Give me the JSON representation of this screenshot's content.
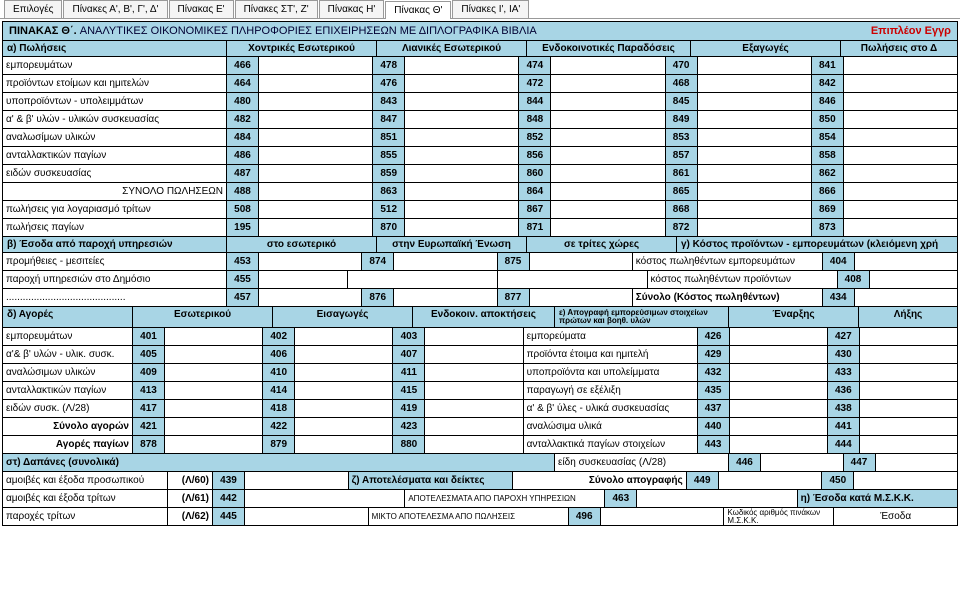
{
  "tabs": [
    "Επιλογές",
    "Πίνακες Α', Β', Γ', Δ'",
    "Πίνακας Ε'",
    "Πίνακες ΣΤ', Ζ'",
    "Πίνακας Η'",
    "Πίνακας Θ'",
    "Πίνακες Ι', ΙΑ'"
  ],
  "active_tab": 5,
  "title": {
    "pre": "ΠΙΝΑΚΑΣ Θ΄.",
    "main": "ΑΝΑΛΥΤΙΚΕΣ ΟΙΚΟΝΟΜΙΚΕΣ ΠΛΗΡΟΦΟΡΙΕΣ ΕΠΙΧΕΙΡΗΣΕΩΝ ΜΕ ΔΙΠΛΟΓΡΑΦΙΚΑ  ΒΙΒΛΙΑ",
    "extra": "Επιπλέον Εγγρ"
  },
  "sectionA": {
    "header": "α) Πωλήσεις",
    "cols": [
      "Χοντρικές Εσωτερικού",
      "Λιανικές Εσωτερικού",
      "Ενδοκοινοτικές Παραδόσεις",
      "Εξαγωγές",
      "Πωλήσεις στο Δ"
    ],
    "rows": [
      {
        "label": "εμπορευμάτων",
        "c": [
          "466",
          "478",
          "474",
          "470",
          "841"
        ]
      },
      {
        "label": "προϊόντων ετοίμων και ημιτελών",
        "c": [
          "464",
          "476",
          "472",
          "468",
          "842"
        ]
      },
      {
        "label": "υποπροϊόντων - υπολειμμάτων",
        "c": [
          "480",
          "843",
          "844",
          "845",
          "846"
        ]
      },
      {
        "label": "α' & β' υλών - υλικών συσκευασίας",
        "c": [
          "482",
          "847",
          "848",
          "849",
          "850"
        ]
      },
      {
        "label": "αναλωσίμων υλικών",
        "c": [
          "484",
          "851",
          "852",
          "853",
          "854"
        ]
      },
      {
        "label": "ανταλλακτικών παγίων",
        "c": [
          "486",
          "855",
          "856",
          "857",
          "858"
        ]
      },
      {
        "label": "ειδών συσκευασίας",
        "c": [
          "487",
          "859",
          "860",
          "861",
          "862"
        ]
      },
      {
        "label": "ΣΥΝΟΛΟ ΠΩΛΗΣΕΩΝ",
        "right": true,
        "c": [
          "488",
          "863",
          "864",
          "865",
          "866"
        ]
      },
      {
        "label": "πωλήσεις για λογαριασμό τρίτων",
        "c": [
          "508",
          "512",
          "867",
          "868",
          "869"
        ]
      },
      {
        "label": "πωλήσεις παγίων",
        "c": [
          "195",
          "870",
          "871",
          "872",
          "873"
        ]
      }
    ]
  },
  "sectionB": {
    "header": "β) Έσοδα από παροχή υπηρεσιών",
    "cols": [
      "στο εσωτερικό",
      "στην Ευρωπαϊκή Ένωση",
      "σε τρίτες χώρες",
      "γ) Κόστος προϊόντων - εμπορευμάτων (κλειόμενη χρή"
    ],
    "rows": [
      {
        "label": "προμήθειες - μεσιτείες",
        "c1": "453",
        "c2": "874",
        "c3": "875",
        "rlabel": "κόστος πωληθέντων εμπορευμάτων",
        "rc": "404"
      },
      {
        "label": "παροχή υπηρεσιών στο Δημόσιο",
        "c1": "455",
        "c2": "",
        "c3": "",
        "rlabel": "κόστος πωληθέντων προϊόντων",
        "rc": "408"
      },
      {
        "label": "...........................................",
        "c1": "457",
        "c2": "876",
        "c3": "877",
        "rlabel": "Σύνολο (Κόστος πωληθέντων)",
        "rbold": true,
        "rc": "434"
      }
    ]
  },
  "sectionD": {
    "header": "δ) Αγορές",
    "cols": [
      "Εσωτερικού",
      "Εισαγωγές",
      "Ενδοκοιν. αποκτήσεις",
      "ε) Απογραφή εμπορεύσιμων στοιχείων πρώτων και βοηθ. υλών",
      "Έναρξης",
      "Λήξης"
    ],
    "rows": [
      {
        "label": "εμπορευμάτων",
        "c": [
          "401",
          "402",
          "403"
        ],
        "rlabel": "εμπορεύματα",
        "rc": [
          "426",
          "427"
        ]
      },
      {
        "label": "α'& β' υλών - υλικ. συσκ.",
        "c": [
          "405",
          "406",
          "407"
        ],
        "rlabel": "προϊόντα έτοιμα και ημιτελή",
        "rc": [
          "429",
          "430"
        ]
      },
      {
        "label": "αναλώσιμων υλικών",
        "c": [
          "409",
          "410",
          "411"
        ],
        "rlabel": "υποπροϊόντα και υπολείμματα",
        "rc": [
          "432",
          "433"
        ]
      },
      {
        "label": "ανταλλακτικών παγίων",
        "c": [
          "413",
          "414",
          "415"
        ],
        "rlabel": "παραγωγή σε εξέλιξη",
        "rc": [
          "435",
          "436"
        ]
      },
      {
        "label": "ειδών συσκ.       (Λ/28)",
        "c": [
          "417",
          "418",
          "419"
        ],
        "rlabel": "α' & β' ύλες - υλικά συσκευασίας",
        "rc": [
          "437",
          "438"
        ]
      },
      {
        "label": "Σύνολο αγορών",
        "bold": true,
        "right": true,
        "c": [
          "421",
          "422",
          "423"
        ],
        "rlabel": "αναλώσιμα υλικά",
        "rc": [
          "440",
          "441"
        ]
      },
      {
        "label": "Αγορές παγίων",
        "bold": true,
        "right": true,
        "c": [
          "878",
          "879",
          "880"
        ],
        "rlabel": "ανταλλακτικά παγίων στοιχείων",
        "rc": [
          "443",
          "444"
        ]
      }
    ]
  },
  "sectionST": {
    "header": "στ) Δαπάνες (συνολικά)",
    "right1": {
      "label": "είδη συσκευασίας          (Λ/28)",
      "c": [
        "446",
        "447"
      ]
    },
    "rows": [
      {
        "label": "αμοιβές και έξοδα προσωπικού",
        "par": "(Λ/60)",
        "c": "439",
        "mid": "ζ) Αποτελέσματα και δείκτες",
        "rlabel": "Σύνολο απογραφής",
        "rbold": true,
        "rc": [
          "449",
          "450"
        ]
      },
      {
        "label": "αμοιβές και έξοδα τρίτων",
        "par": "(Λ/61)",
        "c": "442",
        "mid": "ΑΠΟΤΕΛΕΣΜΑΤΑ ΑΠΟ ΠΑΡΟΧΗ ΥΠΗΡΕΣΙΩΝ",
        "mc": "463",
        "rhdr": "η) Έσοδα κατά Μ.Σ.Κ.Κ."
      },
      {
        "label": "παροχές τρίτων",
        "par": "(Λ/62)",
        "c": "445",
        "mid": "ΜΙΚΤΟ ΑΠΟΤΕΛΕΣΜΑ ΑΠΟ ΠΩΛΗΣΕΙΣ",
        "mc": "496",
        "rkod": "Κωδικός αριθμός πινάκων Μ.Σ.Κ.Κ.",
        "rlbl": "Έσοδα"
      }
    ]
  },
  "colors": {
    "header_bg": "#a8d5e5",
    "border": "#000000"
  }
}
